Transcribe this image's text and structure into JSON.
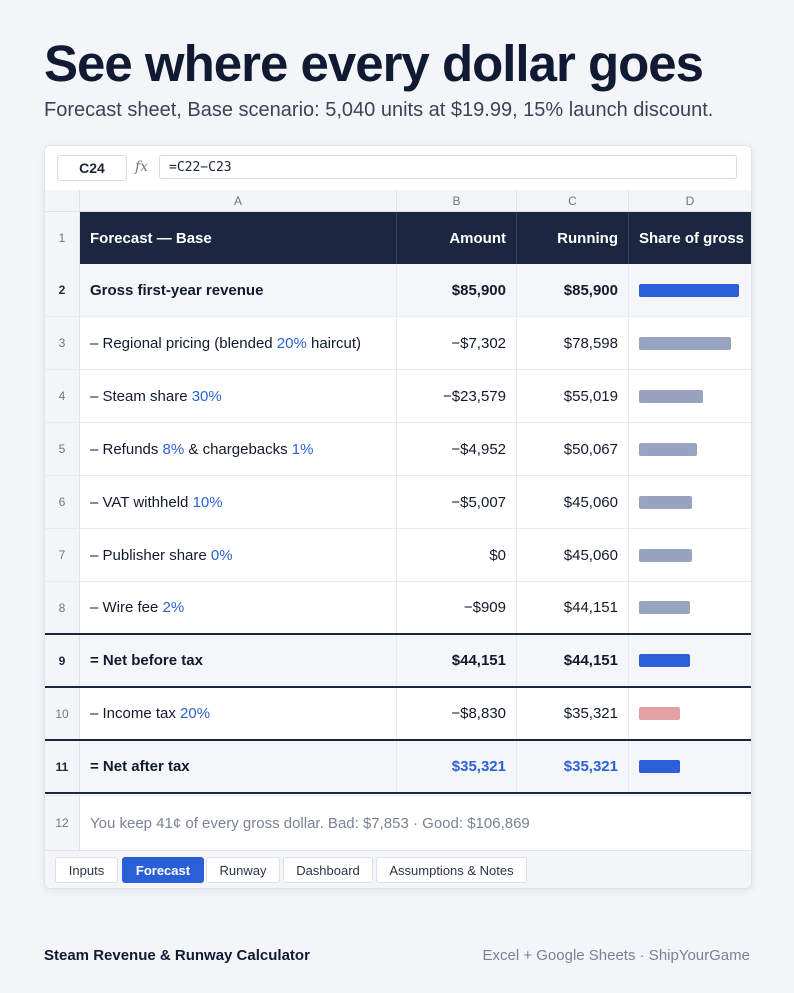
{
  "headline": "See where every dollar goes",
  "subline": "Forecast sheet, Base scenario: 5,040 units at $19.99, 15% launch discount.",
  "formula_bar": {
    "cell_ref": "C24",
    "fx_label": "fx",
    "formula": "=C22−C23"
  },
  "columns": [
    "A",
    "B",
    "C",
    "D"
  ],
  "header_row": {
    "num": "1",
    "label": "Forecast — Base",
    "amount": "Amount",
    "running": "Running",
    "share": "Share of gross"
  },
  "rows": [
    {
      "num": "2",
      "label_pre": "Gross first-year revenue",
      "pct": "",
      "label_mid": "",
      "pct2": "",
      "label_post": "",
      "amount": "$85,900",
      "running": "$85,900",
      "share": 1.0
    },
    {
      "num": "3",
      "label_pre": "– Regional pricing (blended ",
      "pct": "20%",
      "label_mid": " haircut)",
      "pct2": "",
      "label_post": "",
      "amount": "−$7,302",
      "running": "$78,598",
      "share": 0.915
    },
    {
      "num": "4",
      "label_pre": "– Steam share ",
      "pct": "30%",
      "label_mid": "",
      "pct2": "",
      "label_post": "",
      "amount": "−$23,579",
      "running": "$55,019",
      "share": 0.641
    },
    {
      "num": "5",
      "label_pre": "– Refunds ",
      "pct": "8%",
      "label_mid": " & chargebacks ",
      "pct2": "1%",
      "label_post": "",
      "amount": "−$4,952",
      "running": "$50,067",
      "share": 0.583
    },
    {
      "num": "6",
      "label_pre": "– VAT withheld ",
      "pct": "10%",
      "label_mid": "",
      "pct2": "",
      "label_post": "",
      "amount": "−$5,007",
      "running": "$45,060",
      "share": 0.525
    },
    {
      "num": "7",
      "label_pre": "– Publisher share ",
      "pct": "0%",
      "label_mid": "",
      "pct2": "",
      "label_post": "",
      "amount": "$0",
      "running": "$45,060",
      "share": 0.525
    },
    {
      "num": "8",
      "label_pre": "– Wire fee ",
      "pct": "2%",
      "label_mid": "",
      "pct2": "",
      "label_post": "",
      "amount": "−$909",
      "running": "$44,151",
      "share": 0.514
    },
    {
      "num": "9",
      "label_pre": "= Net before tax",
      "pct": "",
      "label_mid": "",
      "pct2": "",
      "label_post": "",
      "amount": "$44,151",
      "running": "$44,151",
      "share": 0.514
    },
    {
      "num": "10",
      "label_pre": "– Income tax ",
      "pct": "20%",
      "label_mid": "",
      "pct2": "",
      "label_post": "",
      "amount": "−$8,830",
      "running": "$35,321",
      "share": 0.411
    },
    {
      "num": "11",
      "label_pre": "= Net after tax",
      "pct": "",
      "label_mid": "",
      "pct2": "",
      "label_post": "",
      "amount": "$35,321",
      "running": "$35,321",
      "share": 0.411
    }
  ],
  "summary_row": {
    "num": "12",
    "text": "You keep 41¢ of every gross dollar. Bad: $7,853 · Good: $106,869"
  },
  "tabs": [
    "Inputs",
    "Forecast",
    "Runway",
    "Dashboard",
    "Assumptions & Notes"
  ],
  "active_tab": "Forecast",
  "footer": {
    "left": "Steam Revenue & Runway Calculator",
    "right": "Excel + Google Sheets · ShipYourGame"
  },
  "colors": {
    "accent": "#2b5fd8",
    "header_bg": "#1b2740",
    "deduction_bar": "#98a4bf",
    "tax_bar": "#e3a1a4",
    "net_text": "#2c62d4"
  }
}
